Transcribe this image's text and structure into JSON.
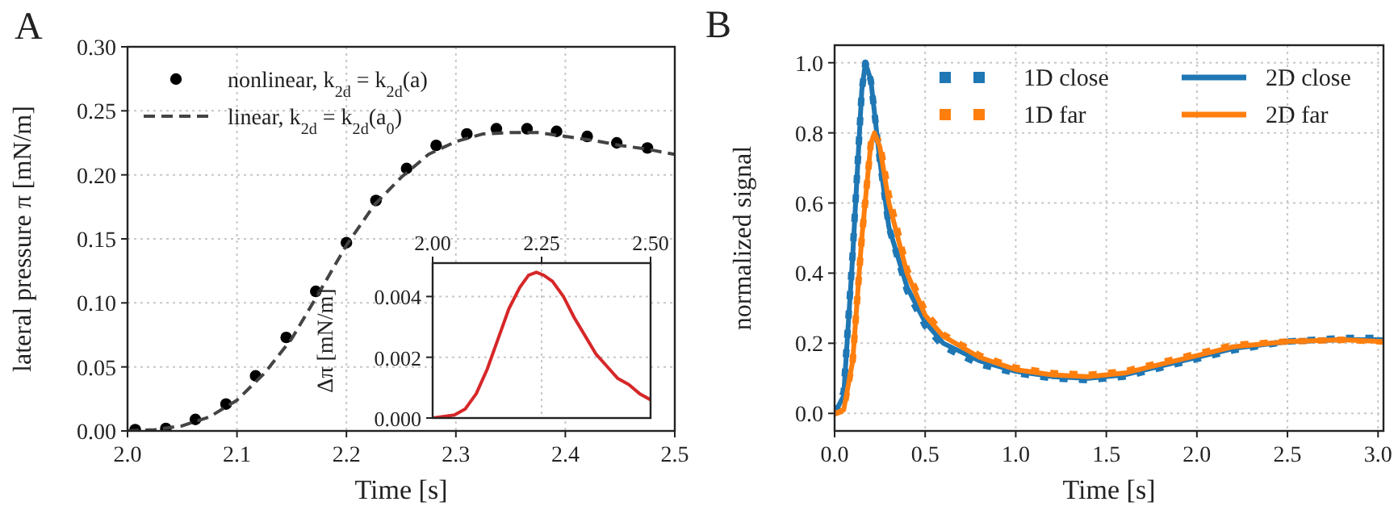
{
  "chart_data": [
    {
      "type": "line",
      "title": "A",
      "xlabel": "Time [s]",
      "ylabel": "lateral pressure π [mN/m]",
      "xlim": [
        2.0,
        2.5
      ],
      "xticks": [
        {
          "value": 2.0,
          "label": "2.0"
        },
        2.1,
        2.2,
        2.3,
        2.4,
        {
          "value": 2.5,
          "label": "2.5"
        }
      ],
      "ylim": [
        0,
        0.3
      ],
      "yticks": [
        {
          "value": 0,
          "label": "0.00"
        },
        {
          "value": 0.05,
          "label": "0.05"
        },
        {
          "value": 0.1,
          "label": "0.10"
        },
        {
          "value": 0.15,
          "label": "0.15"
        },
        {
          "value": 0.2,
          "label": "0.20"
        },
        {
          "value": 0.25,
          "label": "0.25"
        },
        {
          "value": 0.3,
          "label": "0.30"
        }
      ],
      "grid": true,
      "legend": "top left",
      "series": [
        {
          "name": "nonlinear, k$_{2d}$ = k$_{2d}$(a)",
          "type": "scatter",
          "marker": "circle",
          "color": "#000000",
          "x": [
            2.007,
            2.035,
            2.062,
            2.09,
            2.117,
            2.145,
            2.172,
            2.2,
            2.227,
            2.255,
            2.282,
            2.31,
            2.337,
            2.365,
            2.392,
            2.42,
            2.447,
            2.475
          ],
          "values": [
            0.001,
            0.002,
            0.009,
            0.021,
            0.043,
            0.073,
            0.109,
            0.147,
            0.18,
            0.205,
            0.223,
            0.232,
            0.236,
            0.236,
            0.234,
            0.23,
            0.225,
            0.221
          ]
        },
        {
          "name": "linear, k$_{2d}$ = k$_{2d}$(a$_{0}$)",
          "type": "line",
          "line_style": "dashed",
          "color": "#444444",
          "x": [
            2.0,
            2.025,
            2.05,
            2.075,
            2.1,
            2.125,
            2.15,
            2.175,
            2.2,
            2.225,
            2.25,
            2.275,
            2.3,
            2.325,
            2.35,
            2.375,
            2.4,
            2.425,
            2.45,
            2.475,
            2.5
          ],
          "values": [
            0.0,
            0.001,
            0.004,
            0.011,
            0.024,
            0.045,
            0.072,
            0.108,
            0.145,
            0.176,
            0.198,
            0.216,
            0.226,
            0.232,
            0.233,
            0.233,
            0.23,
            0.227,
            0.223,
            0.22,
            0.216
          ]
        }
      ]
    },
    {
      "type": "line",
      "ylabel": "Δπ [mN/m]",
      "xlim": [
        2.0,
        2.5
      ],
      "xticks": [
        {
          "value": 2.0,
          "label": "2.00"
        },
        {
          "value": 2.25,
          "label": "2.25"
        },
        {
          "value": 2.5,
          "label": "2.50"
        }
      ],
      "ylim": [
        0,
        0.0051
      ],
      "yticks": [
        {
          "value": 0,
          "label": "0.000"
        },
        {
          "value": 0.002,
          "label": "0.002"
        },
        {
          "value": 0.004,
          "label": "0.004"
        }
      ],
      "grid": true,
      "series": [
        {
          "color": "#d62728",
          "x": [
            2.0,
            2.05,
            2.075,
            2.1,
            2.125,
            2.15,
            2.175,
            2.2,
            2.22,
            2.238,
            2.255,
            2.275,
            2.3,
            2.325,
            2.35,
            2.375,
            2.4,
            2.425,
            2.45,
            2.475,
            2.5
          ],
          "values": [
            0.0,
            0.0001,
            0.0003,
            0.0008,
            0.0016,
            0.0026,
            0.0036,
            0.0043,
            0.0047,
            0.0048,
            0.0047,
            0.0045,
            0.004,
            0.0033,
            0.0027,
            0.0021,
            0.0017,
            0.0013,
            0.0011,
            0.0008,
            0.0006
          ]
        }
      ]
    },
    {
      "type": "line",
      "title": "B",
      "xlabel": "Time [s]",
      "ylabel": "normalized signal",
      "xlim": [
        0,
        3.03
      ],
      "xticks": [
        {
          "value": 0,
          "label": "0.0"
        },
        0.5,
        {
          "value": 1,
          "label": "1.0"
        },
        1.5,
        {
          "value": 2,
          "label": "2.0"
        },
        2.5,
        {
          "value": 3,
          "label": "3.0"
        }
      ],
      "ylim": [
        -0.05,
        1.05
      ],
      "yticks": [
        {
          "value": 0,
          "label": "0.0"
        },
        0.2,
        0.4,
        0.6,
        0.8,
        {
          "value": 1,
          "label": "1.0"
        }
      ],
      "grid": true,
      "legend": "top right",
      "series": [
        {
          "name": "1D close",
          "line_style": "dashed",
          "color": "#1f77b4",
          "x": [
            0,
            0.05,
            0.1,
            0.15,
            0.17,
            0.2,
            0.25,
            0.3,
            0.4,
            0.5,
            0.6,
            0.8,
            1.0,
            1.2,
            1.4,
            1.6,
            1.8,
            2.0,
            2.2,
            2.5,
            2.8,
            3.03
          ],
          "values": [
            0.0,
            0.06,
            0.46,
            0.92,
            1.0,
            0.95,
            0.72,
            0.53,
            0.35,
            0.25,
            0.19,
            0.14,
            0.115,
            0.1,
            0.095,
            0.105,
            0.13,
            0.155,
            0.18,
            0.205,
            0.215,
            0.215
          ]
        },
        {
          "name": "1D far",
          "line_style": "dashed",
          "color": "#ff7f0e",
          "x": [
            0,
            0.05,
            0.1,
            0.15,
            0.2,
            0.22,
            0.25,
            0.3,
            0.4,
            0.5,
            0.6,
            0.8,
            1.0,
            1.2,
            1.4,
            1.6,
            1.8,
            2.0,
            2.2,
            2.5,
            2.8,
            3.03
          ],
          "values": [
            0.0,
            0.01,
            0.15,
            0.5,
            0.77,
            0.8,
            0.77,
            0.62,
            0.41,
            0.29,
            0.225,
            0.165,
            0.13,
            0.115,
            0.11,
            0.12,
            0.145,
            0.17,
            0.195,
            0.205,
            0.21,
            0.205
          ]
        },
        {
          "name": "2D close",
          "color": "#1f77b4",
          "x": [
            0,
            0.05,
            0.1,
            0.15,
            0.17,
            0.2,
            0.25,
            0.3,
            0.4,
            0.5,
            0.6,
            0.8,
            1.0,
            1.2,
            1.4,
            1.6,
            1.8,
            2.0,
            2.2,
            2.5,
            2.8,
            3.03
          ],
          "values": [
            0.0,
            0.05,
            0.45,
            0.92,
            1.0,
            0.95,
            0.72,
            0.53,
            0.36,
            0.26,
            0.2,
            0.15,
            0.12,
            0.105,
            0.1,
            0.11,
            0.135,
            0.16,
            0.185,
            0.205,
            0.21,
            0.21
          ]
        },
        {
          "name": "2D far",
          "color": "#ff7f0e",
          "x": [
            0,
            0.05,
            0.1,
            0.15,
            0.2,
            0.22,
            0.25,
            0.3,
            0.4,
            0.5,
            0.6,
            0.8,
            1.0,
            1.2,
            1.4,
            1.6,
            1.8,
            2.0,
            2.2,
            2.5,
            2.8,
            3.03
          ],
          "values": [
            0.0,
            0.01,
            0.15,
            0.5,
            0.77,
            0.8,
            0.76,
            0.6,
            0.4,
            0.28,
            0.22,
            0.16,
            0.125,
            0.11,
            0.105,
            0.115,
            0.14,
            0.165,
            0.19,
            0.205,
            0.21,
            0.205
          ]
        }
      ]
    }
  ]
}
